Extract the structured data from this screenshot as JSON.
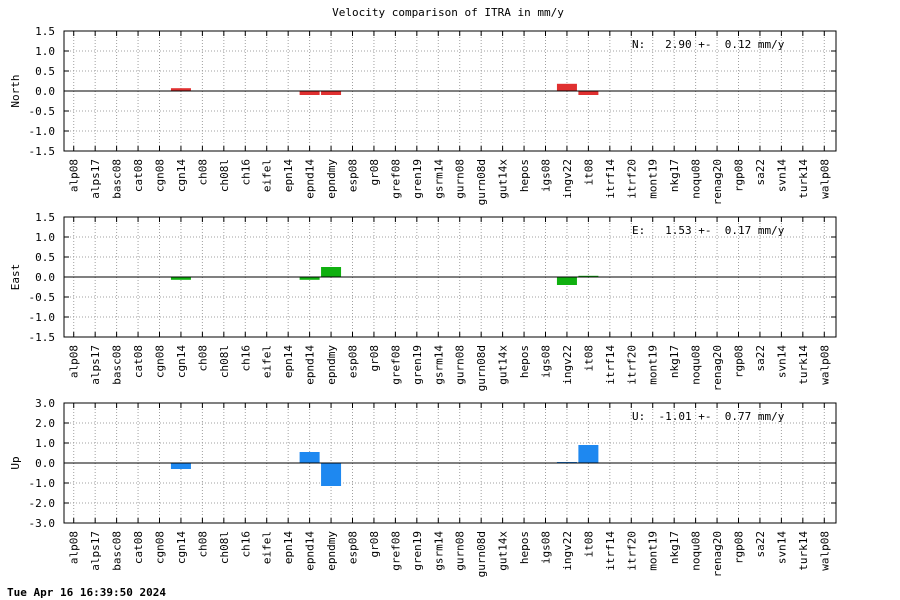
{
  "title": "Velocity comparison of ITRA in mm/y",
  "footer": "Tue Apr 16 16:39:50 2024",
  "chart_data": {
    "type": "bar",
    "categories": [
      "alp08",
      "alps17",
      "basc08",
      "cat08",
      "cgn08",
      "cgn14",
      "ch08",
      "ch08l",
      "ch16",
      "eifel",
      "epn14",
      "epnd14",
      "epndmy",
      "esp08",
      "gr08",
      "gref08",
      "gren19",
      "gsrm14",
      "gurn08",
      "gurn08d",
      "gut14x",
      "hepos",
      "igs08",
      "ingv22",
      "it08",
      "itrf14",
      "itrf20",
      "mont19",
      "nkg17",
      "noqu08",
      "renag20",
      "rgp08",
      "sa22",
      "svn14",
      "turk14",
      "walp08"
    ],
    "panels": [
      {
        "ylabel": "North",
        "annotation": "N:   2.90 +-  0.12 mm/y",
        "ylim": [
          -1.5,
          1.5
        ],
        "ytick_labels": [
          "1.5",
          "1.0",
          "0.5",
          "0.0",
          "-0.5",
          "-1.0",
          "-1.5"
        ],
        "color": "#e03030",
        "values": [
          0,
          0,
          0,
          0,
          0,
          0.07,
          0,
          0,
          0,
          0,
          0,
          -0.1,
          -0.1,
          0,
          0,
          0,
          0,
          0,
          0,
          0,
          0,
          0,
          0,
          0.18,
          -0.1,
          0,
          0,
          0,
          0,
          0,
          0,
          0,
          0,
          0,
          0,
          0
        ]
      },
      {
        "ylabel": "East",
        "annotation": "E:   1.53 +-  0.17 mm/y",
        "ylim": [
          -1.5,
          1.5
        ],
        "ytick_labels": [
          "1.5",
          "1.0",
          "0.5",
          "0.0",
          "-0.5",
          "-1.0",
          "-1.5"
        ],
        "color": "#10b010",
        "values": [
          0,
          0,
          0,
          0,
          0,
          -0.07,
          0,
          0,
          0,
          0,
          0,
          -0.07,
          0.25,
          0,
          0,
          0,
          0,
          0,
          0,
          0,
          0,
          0,
          0,
          -0.2,
          0.03,
          0,
          0,
          0,
          0,
          0,
          0,
          0,
          0,
          0,
          0,
          0
        ]
      },
      {
        "ylabel": "Up",
        "annotation": "U:  -1.01 +-  0.77 mm/y",
        "ylim": [
          -3.0,
          3.0
        ],
        "ytick_labels": [
          "3.0",
          "2.0",
          "1.0",
          "0.0",
          "-1.0",
          "-2.0",
          "-3.0"
        ],
        "color": "#1e88f0",
        "values": [
          0,
          0,
          0,
          0,
          0,
          -0.3,
          0,
          0,
          0,
          0,
          0,
          0.55,
          -1.15,
          0,
          0,
          0,
          0,
          0,
          0,
          0,
          0,
          0,
          0,
          0.05,
          0.9,
          0,
          0,
          0,
          0,
          0,
          0,
          0,
          0,
          0,
          0,
          0
        ]
      }
    ]
  }
}
